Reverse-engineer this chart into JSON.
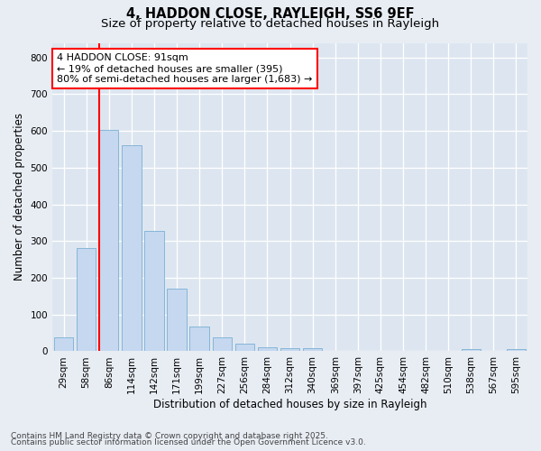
{
  "title1": "4, HADDON CLOSE, RAYLEIGH, SS6 9EF",
  "title2": "Size of property relative to detached houses in Rayleigh",
  "xlabel": "Distribution of detached houses by size in Rayleigh",
  "ylabel": "Number of detached properties",
  "categories": [
    "29sqm",
    "58sqm",
    "86sqm",
    "114sqm",
    "142sqm",
    "171sqm",
    "199sqm",
    "227sqm",
    "256sqm",
    "284sqm",
    "312sqm",
    "340sqm",
    "369sqm",
    "397sqm",
    "425sqm",
    "454sqm",
    "482sqm",
    "510sqm",
    "538sqm",
    "567sqm",
    "595sqm"
  ],
  "values": [
    38,
    280,
    603,
    560,
    328,
    170,
    68,
    38,
    20,
    12,
    8,
    8,
    0,
    0,
    0,
    0,
    0,
    0,
    5,
    0,
    5
  ],
  "bar_color": "#c5d8ef",
  "bar_edge_color": "#7bafd4",
  "vline_x": 2.0,
  "vline_color": "red",
  "annotation_text": "4 HADDON CLOSE: 91sqm\n← 19% of detached houses are smaller (395)\n80% of semi-detached houses are larger (1,683) →",
  "annotation_box_color": "white",
  "annotation_box_edge_color": "red",
  "ylim": [
    0,
    840
  ],
  "yticks": [
    0,
    100,
    200,
    300,
    400,
    500,
    600,
    700,
    800
  ],
  "background_color": "#e8edf4",
  "plot_background": "#dde6f0",
  "grid_color": "white",
  "footer1": "Contains HM Land Registry data © Crown copyright and database right 2025.",
  "footer2": "Contains public sector information licensed under the Open Government Licence v3.0.",
  "title_fontsize": 10.5,
  "subtitle_fontsize": 9.5,
  "axis_label_fontsize": 8.5,
  "tick_fontsize": 7.5,
  "annotation_fontsize": 8,
  "footer_fontsize": 6.5
}
